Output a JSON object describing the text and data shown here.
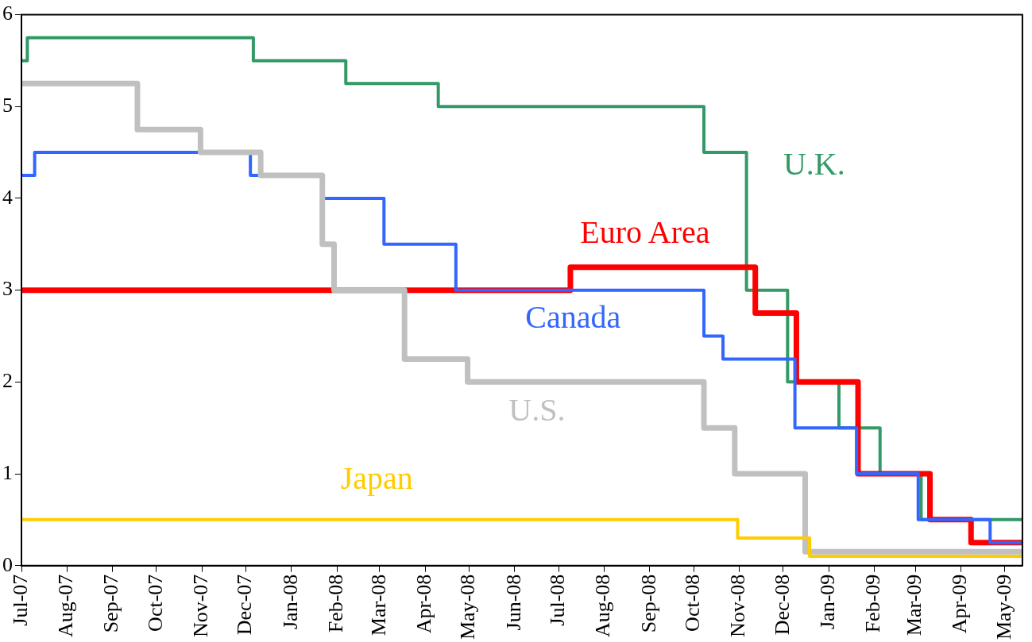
{
  "chart_data": {
    "type": "step",
    "xlim": [
      "2007-07-01",
      "2009-05-13"
    ],
    "ylim": [
      0,
      6
    ],
    "yticks": [
      0,
      1,
      2,
      3,
      4,
      5,
      6
    ],
    "xticks": [
      {
        "value": "2007-07-01",
        "label": "Jul-07"
      },
      {
        "value": "2007-08-01",
        "label": "Aug-07"
      },
      {
        "value": "2007-09-01",
        "label": "Sep-07"
      },
      {
        "value": "2007-10-01",
        "label": "Oct-07"
      },
      {
        "value": "2007-11-01",
        "label": "Nov-07"
      },
      {
        "value": "2007-12-01",
        "label": "Dec-07"
      },
      {
        "value": "2008-01-01",
        "label": "Jan-08"
      },
      {
        "value": "2008-02-01",
        "label": "Feb-08"
      },
      {
        "value": "2008-03-01",
        "label": "Mar-08"
      },
      {
        "value": "2008-04-01",
        "label": "Apr-08"
      },
      {
        "value": "2008-05-01",
        "label": "May-08"
      },
      {
        "value": "2008-06-01",
        "label": "Jun-08"
      },
      {
        "value": "2008-07-01",
        "label": "Jul-08"
      },
      {
        "value": "2008-08-01",
        "label": "Aug-08"
      },
      {
        "value": "2008-09-01",
        "label": "Sep-08"
      },
      {
        "value": "2008-10-01",
        "label": "Oct-08"
      },
      {
        "value": "2008-11-01",
        "label": "Nov-08"
      },
      {
        "value": "2008-12-01",
        "label": "Dec-08"
      },
      {
        "value": "2009-01-01",
        "label": "Jan-09"
      },
      {
        "value": "2009-02-01",
        "label": "Feb-09"
      },
      {
        "value": "2009-03-01",
        "label": "Mar-09"
      },
      {
        "value": "2009-04-01",
        "label": "Apr-09"
      },
      {
        "value": "2009-05-01",
        "label": "May-09"
      }
    ],
    "grid": false,
    "legend": false,
    "marker": "none",
    "line_style": "solid",
    "series": [
      {
        "name": "Japan",
        "color": "#ffcc00",
        "x": [
          "2007-07-01",
          "2008-10-31",
          "2008-12-19",
          "2009-05-13"
        ],
        "values": [
          0.5,
          0.3,
          0.1,
          0.1
        ]
      },
      {
        "name": "U.S.",
        "color": "#c0c0c0",
        "x": [
          "2007-07-01",
          "2007-09-18",
          "2007-10-31",
          "2007-12-11",
          "2008-01-22",
          "2008-01-30",
          "2008-03-18",
          "2008-04-30",
          "2008-10-08",
          "2008-10-29",
          "2008-12-16",
          "2009-05-13"
        ],
        "values": [
          5.25,
          4.75,
          4.5,
          4.25,
          3.5,
          3,
          2.25,
          2,
          1.5,
          1,
          0.15,
          0.15
        ]
      },
      {
        "name": "Canada",
        "color": "#3366ff",
        "x": [
          "2007-07-01",
          "2007-07-10",
          "2007-12-04",
          "2008-01-22",
          "2008-03-04",
          "2008-04-22",
          "2008-10-08",
          "2008-10-21",
          "2008-12-09",
          "2009-01-20",
          "2009-03-03",
          "2009-04-21",
          "2009-05-13"
        ],
        "values": [
          4.25,
          4.5,
          4.25,
          4,
          3.5,
          3,
          2.5,
          2.25,
          1.5,
          1,
          0.5,
          0.25,
          0.25
        ]
      },
      {
        "name": "Euro Area",
        "color": "#ff0000",
        "x": [
          "2007-07-01",
          "2008-07-09",
          "2008-11-12",
          "2008-12-10",
          "2009-01-21",
          "2009-03-11",
          "2009-04-08",
          "2009-05-13"
        ],
        "values": [
          3,
          3.25,
          2.75,
          2,
          1,
          0.5,
          0.25,
          0.25
        ]
      },
      {
        "name": "U.K.",
        "color": "#339966",
        "x": [
          "2007-07-01",
          "2007-07-05",
          "2007-12-06",
          "2008-02-07",
          "2008-04-10",
          "2008-10-08",
          "2008-11-06",
          "2008-12-04",
          "2009-01-08",
          "2009-02-05",
          "2009-03-05",
          "2009-05-13"
        ],
        "values": [
          5.5,
          5.75,
          5.5,
          5.25,
          5,
          4.5,
          3,
          2,
          1.5,
          1,
          0.5,
          0.5
        ]
      }
    ]
  }
}
